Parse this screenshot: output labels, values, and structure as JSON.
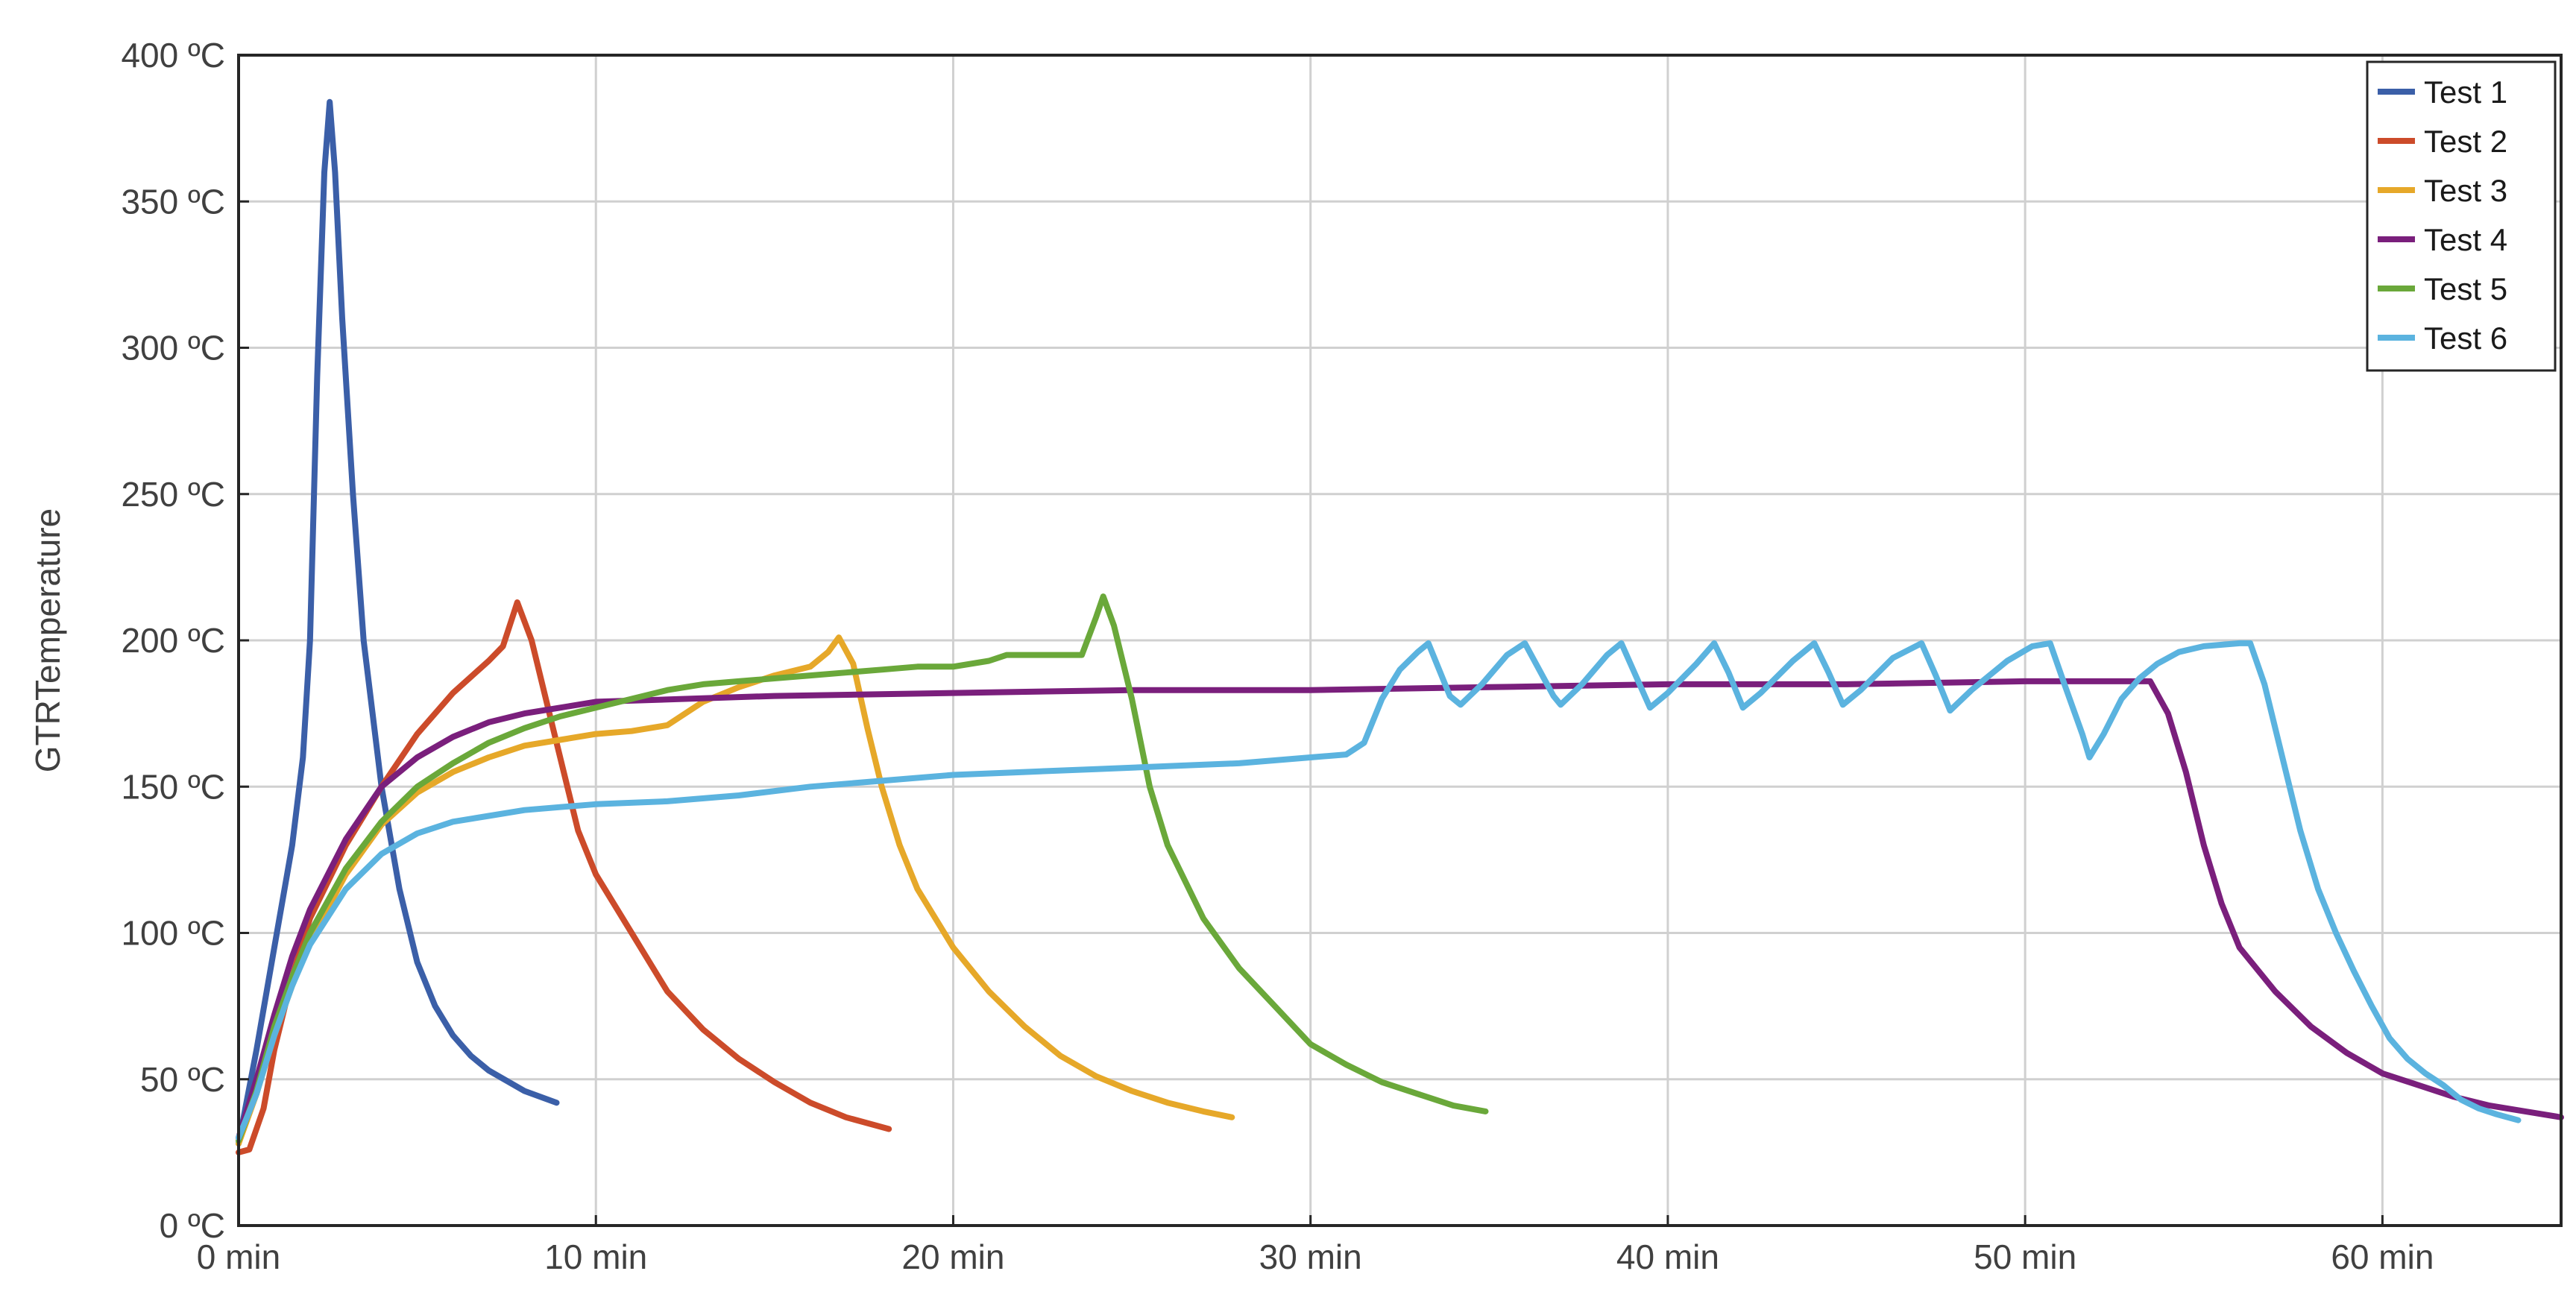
{
  "chart_data": {
    "type": "line",
    "title": "",
    "xlabel": "",
    "ylabel": "GTRTemperature",
    "xlim": [
      0,
      65
    ],
    "ylim": [
      0,
      400
    ],
    "x_ticks": [
      {
        "value": 0,
        "label": "0 min"
      },
      {
        "value": 10,
        "label": "10 min"
      },
      {
        "value": 20,
        "label": "20 min"
      },
      {
        "value": 30,
        "label": "30 min"
      },
      {
        "value": 40,
        "label": "40 min"
      },
      {
        "value": 50,
        "label": "50 min"
      },
      {
        "value": 60,
        "label": "60 min"
      }
    ],
    "y_ticks": [
      {
        "value": 0,
        "label": "0 ºC"
      },
      {
        "value": 50,
        "label": "50 ºC"
      },
      {
        "value": 100,
        "label": "100 ºC"
      },
      {
        "value": 150,
        "label": "150 ºC"
      },
      {
        "value": 200,
        "label": "200 ºC"
      },
      {
        "value": 250,
        "label": "250 ºC"
      },
      {
        "value": 300,
        "label": "300 ºC"
      },
      {
        "value": 350,
        "label": "350 ºC"
      },
      {
        "value": 400,
        "label": "400 ºC"
      }
    ],
    "grid": true,
    "legend_position": "top-right",
    "series": [
      {
        "name": "Test 1",
        "color": "#3b5fa8",
        "points": [
          [
            0,
            28
          ],
          [
            0.5,
            60
          ],
          [
            1,
            95
          ],
          [
            1.5,
            130
          ],
          [
            1.8,
            160
          ],
          [
            2.0,
            200
          ],
          [
            2.2,
            290
          ],
          [
            2.4,
            360
          ],
          [
            2.55,
            384
          ],
          [
            2.7,
            360
          ],
          [
            2.9,
            310
          ],
          [
            3.2,
            250
          ],
          [
            3.5,
            200
          ],
          [
            4,
            150
          ],
          [
            4.5,
            115
          ],
          [
            5,
            90
          ],
          [
            5.5,
            75
          ],
          [
            6,
            65
          ],
          [
            6.5,
            58
          ],
          [
            7,
            53
          ],
          [
            8,
            46
          ],
          [
            8.9,
            42
          ]
        ]
      },
      {
        "name": "Test 2",
        "color": "#cc4b2a",
        "points": [
          [
            0,
            25
          ],
          [
            0.3,
            26
          ],
          [
            0.7,
            40
          ],
          [
            1,
            60
          ],
          [
            1.5,
            85
          ],
          [
            2,
            105
          ],
          [
            3,
            130
          ],
          [
            4,
            150
          ],
          [
            5,
            168
          ],
          [
            6,
            182
          ],
          [
            7,
            193
          ],
          [
            7.4,
            198
          ],
          [
            7.8,
            213
          ],
          [
            8.2,
            200
          ],
          [
            8.6,
            180
          ],
          [
            9,
            160
          ],
          [
            9.5,
            135
          ],
          [
            10,
            120
          ],
          [
            11,
            100
          ],
          [
            12,
            80
          ],
          [
            13,
            67
          ],
          [
            14,
            57
          ],
          [
            15,
            49
          ],
          [
            16,
            42
          ],
          [
            17,
            37
          ],
          [
            18.2,
            33
          ]
        ]
      },
      {
        "name": "Test 3",
        "color": "#e6a829",
        "points": [
          [
            0,
            28
          ],
          [
            0.5,
            45
          ],
          [
            1,
            65
          ],
          [
            1.5,
            82
          ],
          [
            2,
            97
          ],
          [
            3,
            120
          ],
          [
            4,
            137
          ],
          [
            5,
            148
          ],
          [
            6,
            155
          ],
          [
            7,
            160
          ],
          [
            8,
            164
          ],
          [
            9,
            166
          ],
          [
            10,
            168
          ],
          [
            11,
            169
          ],
          [
            12,
            171
          ],
          [
            13,
            179
          ],
          [
            14,
            184
          ],
          [
            15,
            188
          ],
          [
            16,
            191
          ],
          [
            16.5,
            196
          ],
          [
            16.8,
            201
          ],
          [
            17.2,
            192
          ],
          [
            17.6,
            170
          ],
          [
            18,
            150
          ],
          [
            18.5,
            130
          ],
          [
            19,
            115
          ],
          [
            20,
            95
          ],
          [
            21,
            80
          ],
          [
            22,
            68
          ],
          [
            23,
            58
          ],
          [
            24,
            51
          ],
          [
            25,
            46
          ],
          [
            26,
            42
          ],
          [
            27,
            39
          ],
          [
            27.8,
            37
          ]
        ]
      },
      {
        "name": "Test 4",
        "color": "#7a1f7c",
        "points": [
          [
            0,
            30
          ],
          [
            0.5,
            50
          ],
          [
            1,
            72
          ],
          [
            1.5,
            92
          ],
          [
            2,
            108
          ],
          [
            3,
            132
          ],
          [
            4,
            150
          ],
          [
            5,
            160
          ],
          [
            6,
            167
          ],
          [
            7,
            172
          ],
          [
            8,
            175
          ],
          [
            9,
            177
          ],
          [
            10,
            179
          ],
          [
            15,
            181
          ],
          [
            20,
            182
          ],
          [
            25,
            183
          ],
          [
            30,
            183
          ],
          [
            35,
            184
          ],
          [
            40,
            185
          ],
          [
            45,
            185
          ],
          [
            50,
            186
          ],
          [
            53,
            186
          ],
          [
            53.5,
            186
          ],
          [
            54,
            175
          ],
          [
            54.5,
            155
          ],
          [
            55,
            130
          ],
          [
            55.5,
            110
          ],
          [
            56,
            95
          ],
          [
            57,
            80
          ],
          [
            58,
            68
          ],
          [
            59,
            59
          ],
          [
            60,
            52
          ],
          [
            61,
            48
          ],
          [
            62,
            44
          ],
          [
            63,
            41
          ],
          [
            64,
            39
          ],
          [
            65,
            37
          ]
        ]
      },
      {
        "name": "Test 5",
        "color": "#6aa83a",
        "points": [
          [
            0,
            29
          ],
          [
            0.5,
            46
          ],
          [
            1,
            68
          ],
          [
            1.5,
            85
          ],
          [
            2,
            100
          ],
          [
            3,
            122
          ],
          [
            4,
            138
          ],
          [
            5,
            150
          ],
          [
            6,
            158
          ],
          [
            7,
            165
          ],
          [
            8,
            170
          ],
          [
            9,
            174
          ],
          [
            10,
            177
          ],
          [
            11,
            180
          ],
          [
            12,
            183
          ],
          [
            13,
            185
          ],
          [
            14,
            186
          ],
          [
            15,
            187
          ],
          [
            16,
            188
          ],
          [
            17,
            189
          ],
          [
            18,
            190
          ],
          [
            19,
            191
          ],
          [
            20,
            191
          ],
          [
            21,
            193
          ],
          [
            21.5,
            195
          ],
          [
            22,
            195
          ],
          [
            23,
            195
          ],
          [
            23.6,
            195
          ],
          [
            24,
            208
          ],
          [
            24.2,
            215
          ],
          [
            24.5,
            205
          ],
          [
            25,
            180
          ],
          [
            25.5,
            150
          ],
          [
            26,
            130
          ],
          [
            27,
            105
          ],
          [
            28,
            88
          ],
          [
            29,
            75
          ],
          [
            30,
            62
          ],
          [
            31,
            55
          ],
          [
            32,
            49
          ],
          [
            33,
            45
          ],
          [
            34,
            41
          ],
          [
            34.9,
            39
          ]
        ]
      },
      {
        "name": "Test 6",
        "color": "#5bb3df",
        "points": [
          [
            0,
            30
          ],
          [
            0.5,
            45
          ],
          [
            1,
            65
          ],
          [
            1.5,
            82
          ],
          [
            2,
            96
          ],
          [
            3,
            115
          ],
          [
            4,
            127
          ],
          [
            5,
            134
          ],
          [
            6,
            138
          ],
          [
            7,
            140
          ],
          [
            8,
            142
          ],
          [
            9,
            143
          ],
          [
            10,
            144
          ],
          [
            12,
            145
          ],
          [
            14,
            147
          ],
          [
            16,
            150
          ],
          [
            18,
            152
          ],
          [
            20,
            154
          ],
          [
            22,
            155
          ],
          [
            24,
            156
          ],
          [
            26,
            157
          ],
          [
            28,
            158
          ],
          [
            30,
            160
          ],
          [
            31,
            161
          ],
          [
            31.5,
            165
          ],
          [
            32,
            180
          ],
          [
            32.5,
            190
          ],
          [
            33,
            196
          ],
          [
            33.3,
            199
          ],
          [
            33.6,
            190
          ],
          [
            33.9,
            181
          ],
          [
            34.2,
            178
          ],
          [
            34.8,
            185
          ],
          [
            35.5,
            195
          ],
          [
            36,
            199
          ],
          [
            36.4,
            190
          ],
          [
            36.8,
            181
          ],
          [
            37,
            178
          ],
          [
            37.6,
            185
          ],
          [
            38.3,
            195
          ],
          [
            38.7,
            199
          ],
          [
            39.1,
            188
          ],
          [
            39.5,
            177
          ],
          [
            40,
            182
          ],
          [
            40.8,
            192
          ],
          [
            41.3,
            199
          ],
          [
            41.7,
            189
          ],
          [
            42.1,
            177
          ],
          [
            42.6,
            182
          ],
          [
            43.5,
            193
          ],
          [
            44.1,
            199
          ],
          [
            44.5,
            189
          ],
          [
            44.9,
            178
          ],
          [
            45.4,
            183
          ],
          [
            46.3,
            194
          ],
          [
            47.1,
            199
          ],
          [
            47.5,
            188
          ],
          [
            47.9,
            176
          ],
          [
            48.5,
            183
          ],
          [
            49.5,
            193
          ],
          [
            50.2,
            198
          ],
          [
            50.7,
            199
          ],
          [
            51.1,
            185
          ],
          [
            51.6,
            168
          ],
          [
            51.8,
            160
          ],
          [
            52.2,
            168
          ],
          [
            52.7,
            180
          ],
          [
            53.2,
            187
          ],
          [
            53.7,
            192
          ],
          [
            54.3,
            196
          ],
          [
            55,
            198
          ],
          [
            56,
            199
          ],
          [
            56.3,
            199
          ],
          [
            56.7,
            185
          ],
          [
            57.2,
            160
          ],
          [
            57.7,
            135
          ],
          [
            58.2,
            115
          ],
          [
            58.7,
            100
          ],
          [
            59.2,
            87
          ],
          [
            59.7,
            75
          ],
          [
            60.2,
            64
          ],
          [
            60.7,
            57
          ],
          [
            61.2,
            52
          ],
          [
            61.7,
            48
          ],
          [
            62.2,
            43
          ],
          [
            62.7,
            40
          ],
          [
            63.2,
            38
          ],
          [
            63.8,
            36
          ]
        ]
      }
    ]
  }
}
